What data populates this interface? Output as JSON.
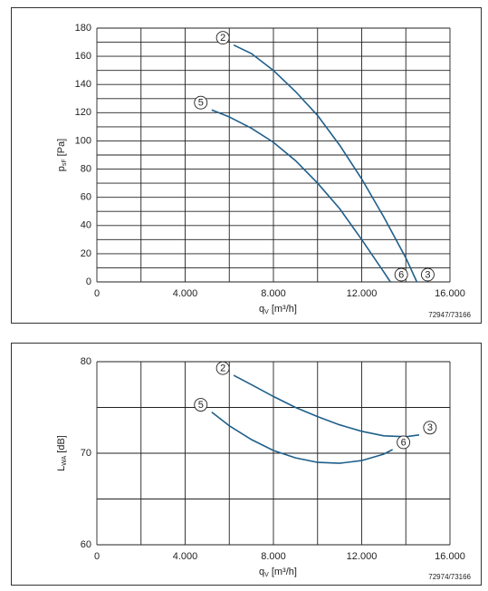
{
  "chart_data": [
    {
      "type": "line",
      "xlabel": {
        "main": "q",
        "sub": "V",
        "unit": "[m³/h]"
      },
      "ylabel": {
        "main": "p",
        "sub": "sF",
        "unit": "[Pa]"
      },
      "code": "72947/73166",
      "xlim": [
        0,
        16000
      ],
      "xticks": [
        0,
        {
          "value": 4000,
          "label": "4.000"
        },
        {
          "value": 8000,
          "label": "8.000"
        },
        {
          "value": 12000,
          "label": "12.000"
        },
        {
          "value": 16000,
          "label": "16.000"
        }
      ],
      "xminor": [
        2000,
        6000,
        10000,
        14000
      ],
      "ylim": [
        0,
        180
      ],
      "yticks": [
        0,
        20,
        40,
        60,
        80,
        100,
        120,
        140,
        160,
        180
      ],
      "yminor": [
        10,
        30,
        50,
        70,
        90,
        110,
        130,
        150,
        170
      ],
      "grid": true,
      "series": [
        {
          "start_label": "2",
          "end_label": "3",
          "color": "#1f5f8b",
          "x": [
            6200,
            7000,
            8000,
            9000,
            10000,
            11000,
            12000,
            13000,
            14000,
            14500
          ],
          "values": [
            168,
            162,
            150,
            135,
            118,
            97,
            73,
            46,
            17,
            0
          ]
        },
        {
          "start_label": "5",
          "end_label": "6",
          "color": "#1f5f8b",
          "x": [
            5200,
            6000,
            7000,
            8000,
            9000,
            10000,
            11000,
            12000,
            13000,
            13300
          ],
          "values": [
            122,
            117,
            109,
            99,
            86,
            70,
            52,
            30,
            7,
            0
          ]
        }
      ]
    },
    {
      "type": "line",
      "xlabel": {
        "main": "q",
        "sub": "V",
        "unit": "[m³/h]"
      },
      "ylabel": {
        "main": "L",
        "sub": "WA",
        "unit": "[dB]"
      },
      "code": "72974/73166",
      "xlim": [
        0,
        16000
      ],
      "xticks": [
        0,
        {
          "value": 4000,
          "label": "4.000"
        },
        {
          "value": 8000,
          "label": "8.000"
        },
        {
          "value": 12000,
          "label": "12.000"
        },
        {
          "value": 16000,
          "label": "16.000"
        }
      ],
      "xminor": [
        2000,
        6000,
        10000,
        14000
      ],
      "ylim": [
        60,
        80
      ],
      "yticks": [
        60,
        70,
        80
      ],
      "yminor": [
        65,
        75
      ],
      "grid": true,
      "series": [
        {
          "start_label": "2",
          "end_label": "3",
          "color": "#1f5f8b",
          "x": [
            6200,
            7000,
            8000,
            9000,
            10000,
            11000,
            12000,
            13000,
            14000,
            14600
          ],
          "values": [
            78.5,
            77.5,
            76.2,
            75,
            74,
            73.1,
            72.4,
            71.9,
            71.8,
            72
          ]
        },
        {
          "start_label": "5",
          "end_label": "6",
          "color": "#1f5f8b",
          "x": [
            5200,
            6000,
            7000,
            8000,
            9000,
            10000,
            11000,
            12000,
            13000,
            13400
          ],
          "values": [
            74.5,
            73,
            71.5,
            70.3,
            69.5,
            69,
            68.9,
            69.2,
            69.9,
            70.4
          ]
        }
      ]
    }
  ]
}
